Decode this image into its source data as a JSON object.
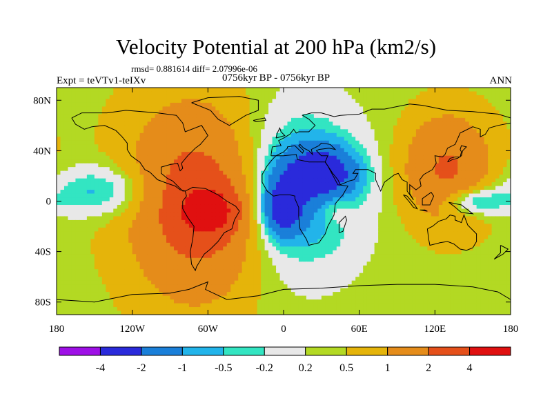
{
  "chart_data": {
    "type": "heatmap",
    "title": "Velocity Potential at 200 hPa (km2/s)",
    "stats_line": "rmsd= 0.881614 diff= 2.07996e-06",
    "left_label": "Expt = teVTv1-teIXv",
    "center_label": "0756kyr BP - 0756kyr BP",
    "right_label": "ANN",
    "x_tick_labels": [
      "180",
      "120W",
      "60W",
      "0",
      "60E",
      "120E",
      "180"
    ],
    "x_tick_values": [
      -180,
      -120,
      -60,
      0,
      60,
      120,
      180
    ],
    "y_tick_labels": [
      "80N",
      "40N",
      "0",
      "40S",
      "80S"
    ],
    "y_tick_values": [
      80,
      40,
      0,
      -40,
      -80
    ],
    "xlim": [
      -180,
      180
    ],
    "ylim": [
      -90,
      90
    ],
    "colorbar": {
      "labels": [
        "-4",
        "-2",
        "-1",
        "-0.5",
        "-0.2",
        "0.2",
        "0.5",
        "1",
        "2",
        "4"
      ],
      "levels": [
        -4,
        -2,
        -1,
        -0.5,
        -0.2,
        0.2,
        0.5,
        1,
        2,
        4
      ],
      "colors": [
        "#9e0fe6",
        "#2a2adb",
        "#1a7fd9",
        "#22b4ea",
        "#33e5c2",
        "#e8e8e8",
        "#b3d923",
        "#e5b40a",
        "#e58c1a",
        "#e5501a",
        "#e01010"
      ]
    },
    "field_centers": [
      {
        "lon": -60,
        "lat": -8,
        "value": 4.2,
        "spread_lon": 14,
        "spread_lat": 12
      },
      {
        "lon": -65,
        "lat": -5,
        "value": 1.6,
        "spread_lon": 30,
        "spread_lat": 45
      },
      {
        "lon": -80,
        "lat": 5,
        "value": 0.9,
        "spread_lon": 40,
        "spread_lat": 60
      },
      {
        "lon": 0,
        "lat": -5,
        "value": -2.8,
        "spread_lon": 10,
        "spread_lat": 15
      },
      {
        "lon": 30,
        "lat": 22,
        "value": -2.6,
        "spread_lon": 20,
        "spread_lat": 14
      },
      {
        "lon": 15,
        "lat": 10,
        "value": -1.5,
        "spread_lon": 32,
        "spread_lat": 42
      },
      {
        "lon": 130,
        "lat": 25,
        "value": 1.8,
        "spread_lon": 24,
        "spread_lat": 30
      },
      {
        "lon": 150,
        "lat": 0,
        "value": -1.4,
        "spread_lon": 18,
        "spread_lat": 8
      },
      {
        "lon": -145,
        "lat": 8,
        "value": -1.1,
        "spread_lon": 28,
        "spread_lat": 14
      },
      {
        "lon": 40,
        "lat": -5,
        "value": 0.7,
        "spread_lon": 10,
        "spread_lat": 10
      }
    ]
  },
  "colors": {
    "background": "#ffffff",
    "frame": "#000000",
    "coastline": "#000000"
  }
}
